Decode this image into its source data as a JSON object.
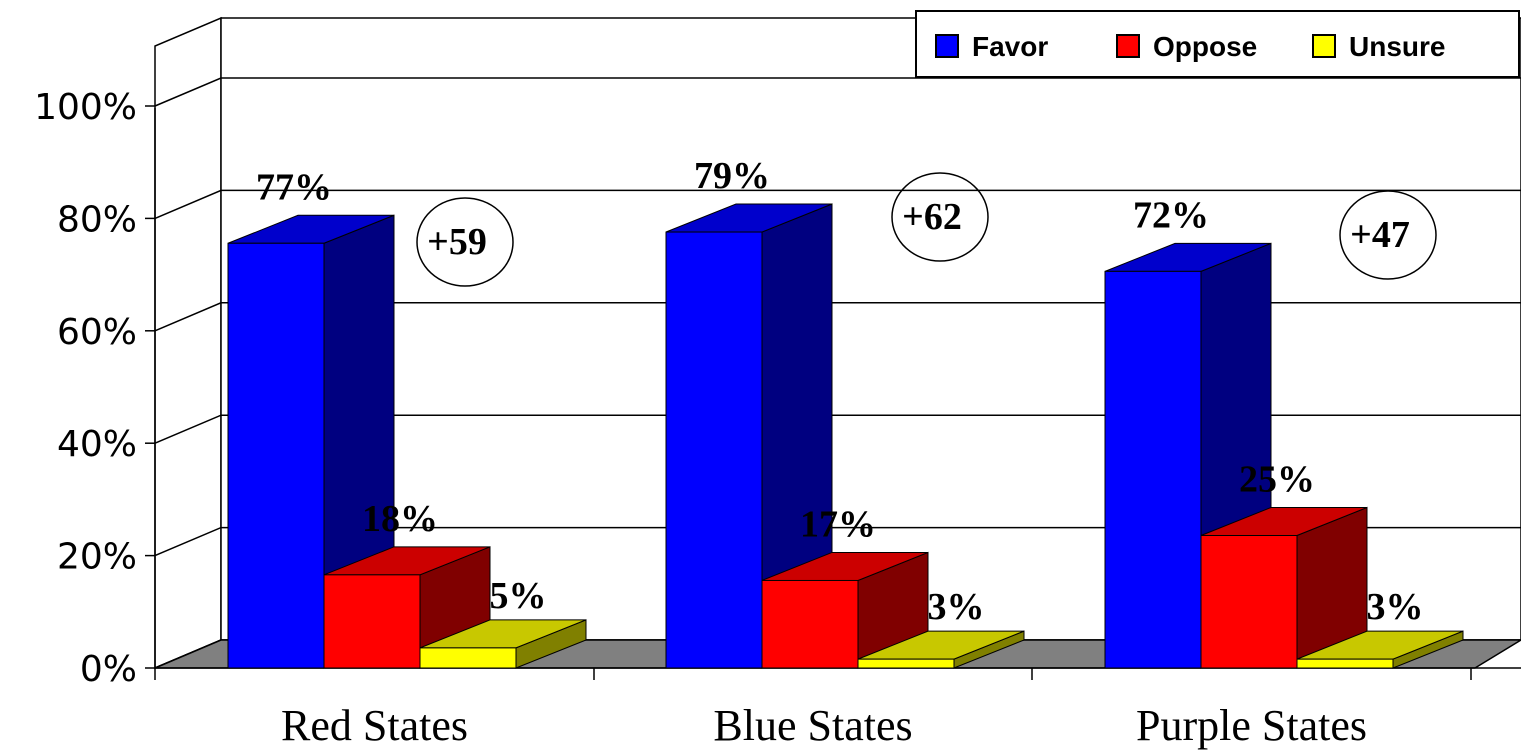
{
  "chart_data": {
    "type": "bar",
    "categories": [
      "Red States",
      "Blue States",
      "Purple States"
    ],
    "series": [
      {
        "name": "Favor",
        "values": [
          77,
          79,
          72
        ],
        "labels": [
          "77%",
          "79%",
          "72%"
        ],
        "color": "#0000ff",
        "side_color": "#000080",
        "top_color": "#0000cc"
      },
      {
        "name": "Oppose",
        "values": [
          18,
          17,
          25
        ],
        "labels": [
          "18%",
          "17%",
          "25%"
        ],
        "color": "#ff0000",
        "side_color": "#800000",
        "top_color": "#cc0000"
      },
      {
        "name": "Unsure",
        "values": [
          5,
          3,
          3
        ],
        "labels": [
          "5%",
          "3%",
          "3%"
        ],
        "color": "#ffff00",
        "side_color": "#808000",
        "top_color": "#c8c800"
      }
    ],
    "net_labels": [
      "+59",
      "+62",
      "+47"
    ],
    "y_ticks": [
      0,
      20,
      40,
      60,
      80,
      100
    ],
    "y_tick_labels": [
      "0%",
      "20%",
      "40%",
      "60%",
      "80%",
      "100%"
    ],
    "ylim": [
      0,
      100
    ],
    "legend_position": "top-right",
    "grid": true,
    "three_d": true,
    "floor_color": "#808080"
  }
}
